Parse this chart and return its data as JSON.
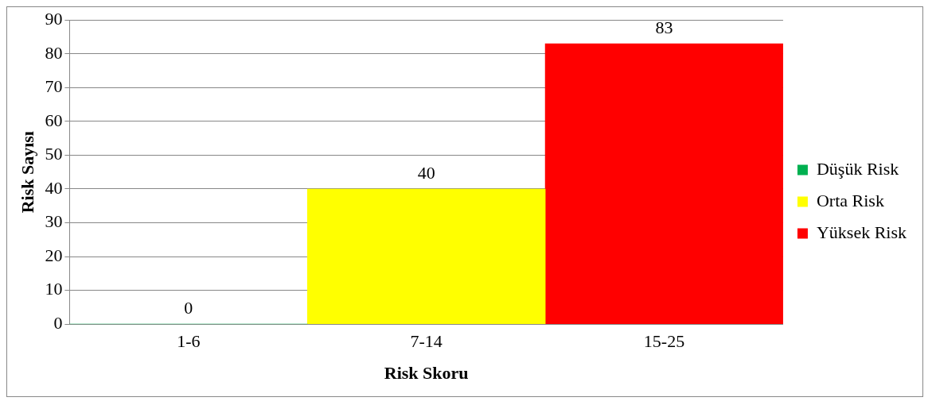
{
  "chart_data": {
    "type": "bar",
    "xlabel": "Risk Skoru",
    "ylabel": "Risk Sayısı",
    "categories": [
      "1-6",
      "7-14",
      "15-25"
    ],
    "series": [
      {
        "name": "Düşük Risk",
        "color": "#00b050",
        "values": [
          0,
          null,
          null
        ]
      },
      {
        "name": "Orta Risk",
        "color": "#ffff00",
        "values": [
          null,
          40,
          null
        ]
      },
      {
        "name": "Yüksek Risk",
        "color": "#ff0000",
        "values": [
          null,
          null,
          83
        ]
      }
    ],
    "ylim": [
      0,
      90
    ],
    "yticks": [
      0,
      10,
      20,
      30,
      40,
      50,
      60,
      70,
      80,
      90
    ],
    "grid": "y",
    "legend": "right",
    "data_labels": true
  }
}
